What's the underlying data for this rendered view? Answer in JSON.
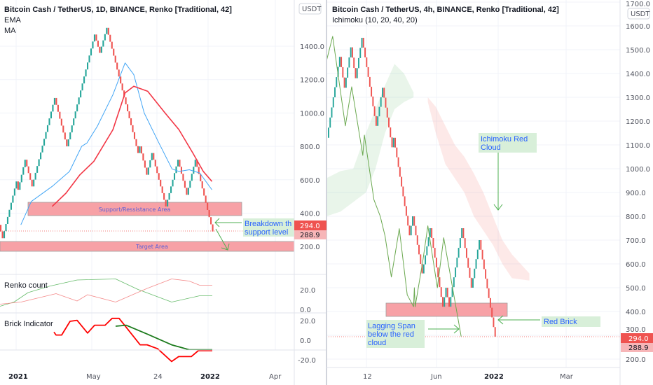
{
  "colors": {
    "up": "#26a69a",
    "down": "#ef5350",
    "ema": "#42a5f5",
    "ma": "#f23645",
    "annotation": "#4caf50",
    "zone": "#f7a1a6"
  },
  "chart_data": [
    {
      "type": "renko",
      "title": "Bitcoin Cash / TetherUS, 1D, BINANCE, Renko [Traditional, 42]",
      "indicators": [
        "EMA",
        "MA"
      ],
      "currency": "USDT",
      "brick_size": 42,
      "pivots": [
        330,
        250,
        590,
        540,
        720,
        560,
        1090,
        800,
        1470,
        1360,
        1510,
        760,
        800,
        630,
        760,
        440,
        720,
        510,
        720,
        290
      ],
      "ema": [
        [
          12,
          330
        ],
        [
          18,
          470
        ],
        [
          30,
          560
        ],
        [
          40,
          650
        ],
        [
          47,
          800
        ],
        [
          50,
          820
        ],
        [
          56,
          920
        ],
        [
          65,
          1110
        ],
        [
          72,
          1300
        ],
        [
          77,
          1230
        ],
        [
          83,
          1000
        ],
        [
          91,
          830
        ],
        [
          99,
          665
        ],
        [
          103,
          650
        ],
        [
          109,
          660
        ],
        [
          115,
          640
        ],
        [
          122,
          540
        ]
      ],
      "ma": [
        [
          30,
          440
        ],
        [
          38,
          520
        ],
        [
          46,
          630
        ],
        [
          54,
          710
        ],
        [
          65,
          900
        ],
        [
          72,
          1120
        ],
        [
          77,
          1160
        ],
        [
          85,
          1130
        ],
        [
          95,
          1000
        ],
        [
          103,
          900
        ],
        [
          111,
          760
        ],
        [
          117,
          650
        ],
        [
          122,
          590
        ]
      ],
      "y_ticks": [
        "1400.0",
        "1200.0",
        "1000.0",
        "800.0",
        "600.0",
        "400.0",
        "200.0"
      ],
      "y_tick_values": [
        1400,
        1200,
        1000,
        800,
        600,
        400,
        200
      ],
      "x_ticks": [
        "2021",
        "May",
        "24",
        "2022",
        "Apr"
      ],
      "last_price": "294.0",
      "prev_price": "288.9",
      "annotations": {
        "support": "Support/Ressistance Area",
        "target": "Target Area",
        "breakdown_line1": "Breakdown th",
        "breakdown_line2": "support level"
      },
      "renko_count": {
        "label": "Renko count",
        "y_ticks": [
          "20.0",
          "0.0"
        ],
        "green": [
          [
            0,
            5
          ],
          [
            20,
            9
          ],
          [
            40,
            18
          ],
          [
            70,
            24
          ],
          [
            110,
            30
          ],
          [
            165,
            31
          ],
          [
            197,
            21
          ],
          [
            245,
            9
          ],
          [
            285,
            15
          ],
          [
            303,
            15
          ]
        ],
        "red": [
          [
            0,
            7
          ],
          [
            30,
            9
          ],
          [
            80,
            17
          ],
          [
            110,
            10
          ],
          [
            125,
            16
          ],
          [
            165,
            9
          ],
          [
            210,
            22
          ],
          [
            245,
            31
          ],
          [
            270,
            29
          ],
          [
            285,
            25
          ],
          [
            303,
            25
          ]
        ]
      },
      "brick_indicator": {
        "label": "Brick Indicator",
        "y_ticks": [
          "20.0",
          "0.0",
          "-20.0"
        ],
        "red": [
          [
            77,
            9
          ],
          [
            80,
            6
          ],
          [
            88,
            6
          ],
          [
            100,
            20
          ],
          [
            110,
            21
          ],
          [
            125,
            8
          ],
          [
            135,
            16
          ],
          [
            150,
            16
          ],
          [
            160,
            23
          ],
          [
            170,
            23
          ],
          [
            200,
            -4
          ],
          [
            210,
            -4
          ],
          [
            225,
            -8
          ],
          [
            245,
            -21
          ],
          [
            255,
            -16
          ],
          [
            273,
            -16
          ],
          [
            283,
            -10
          ],
          [
            303,
            -10
          ]
        ],
        "green": [
          [
            165,
            15
          ],
          [
            180,
            16
          ],
          [
            210,
            7
          ],
          [
            245,
            -4
          ],
          [
            270,
            -9
          ],
          [
            303,
            -9
          ]
        ]
      }
    },
    {
      "type": "renko",
      "title": "Bitcoin Cash / TetherUS, 4h, BINANCE, Renko [Traditional, 42]",
      "indicators": [
        "Ichimoku (10, 20, 40, 20)"
      ],
      "currency": "USDT",
      "brick_size": 42,
      "pivots": [
        1130,
        1470,
        1340,
        1510,
        1380,
        1550,
        1180,
        1340,
        1090,
        1130,
        720,
        800,
        560,
        750,
        420,
        500,
        420,
        750,
        500,
        700,
        294
      ],
      "green_cloud": [
        [
          -1,
          960,
          800
        ],
        [
          8,
          990,
          820
        ],
        [
          16,
          1000,
          860
        ],
        [
          24,
          1150,
          900
        ],
        [
          30,
          1250,
          1000
        ],
        [
          36,
          1350,
          1150
        ],
        [
          42,
          1440,
          1250
        ],
        [
          48,
          1400,
          1280
        ],
        [
          54,
          1320,
          1300
        ]
      ],
      "red_cloud": [
        [
          63,
          1300,
          1280
        ],
        [
          68,
          1260,
          1150
        ],
        [
          74,
          1180,
          1020
        ],
        [
          80,
          1100,
          960
        ],
        [
          86,
          1050,
          900
        ],
        [
          92,
          980,
          800
        ],
        [
          98,
          900,
          740
        ],
        [
          104,
          800,
          680
        ],
        [
          110,
          700,
          600
        ],
        [
          116,
          640,
          540
        ],
        [
          127,
          560,
          530
        ]
      ],
      "lagging_span": [
        [
          -1,
          1450
        ],
        [
          3,
          1556
        ],
        [
          11,
          1180
        ],
        [
          15,
          1344
        ],
        [
          22,
          1056
        ],
        [
          23,
          1141
        ],
        [
          29,
          870
        ],
        [
          33,
          800
        ],
        [
          36,
          718
        ],
        [
          40,
          545
        ],
        [
          45,
          748
        ],
        [
          50,
          470
        ],
        [
          54,
          420
        ],
        [
          54.5,
          500
        ],
        [
          55,
          420
        ],
        [
          60,
          620
        ],
        [
          63,
          760
        ],
        [
          69,
          500
        ],
        [
          73,
          710
        ],
        [
          84,
          295
        ]
      ],
      "y_ticks": [
        "1700.0",
        "1600.0",
        "1500.0",
        "1400.0",
        "1300.0",
        "1200.0",
        "1100.0",
        "1000.0",
        "900.0",
        "800.0",
        "700.0",
        "600.0",
        "500.0",
        "400.0",
        "300.0",
        "200.0"
      ],
      "y_tick_values": [
        1700,
        1600,
        1500,
        1400,
        1300,
        1200,
        1100,
        1000,
        900,
        800,
        700,
        600,
        500,
        400,
        300,
        200
      ],
      "x_ticks": [
        "12",
        "Jun",
        "2022",
        "Mar"
      ],
      "last_price": "294.0",
      "prev_price": "288.9",
      "annotations": {
        "cloud_line1": "Ichimoku Red",
        "cloud_line2": "Cloud",
        "red_brick": "Red Brick",
        "lagging_line1": "Lagging Span",
        "lagging_line2": "below the red",
        "lagging_line3": "cloud"
      }
    }
  ]
}
